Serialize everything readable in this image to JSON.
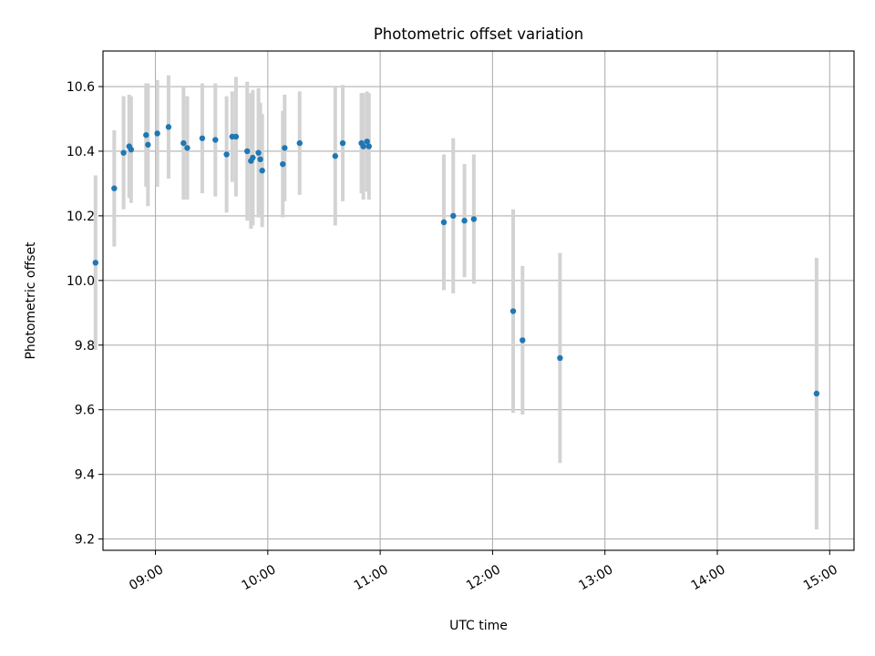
{
  "chart_data": {
    "type": "scatter",
    "title": "Photometric offset variation",
    "xlabel": "UTC time",
    "ylabel": "Photometric offset",
    "xlim": [
      "08:32",
      "15:13"
    ],
    "ylim": [
      9.165,
      10.71
    ],
    "xticks": [
      "09:00",
      "10:00",
      "11:00",
      "12:00",
      "13:00",
      "14:00",
      "15:00"
    ],
    "yticks": [
      "9.2",
      "9.4",
      "9.6",
      "9.8",
      "10.0",
      "10.2",
      "10.4",
      "10.6"
    ],
    "grid": true,
    "colors": {
      "point": "#1f77b4",
      "errorbar": "#d3d3d3"
    },
    "series": [
      {
        "points": [
          {
            "time": "08:28",
            "y": 10.055,
            "yerr": 0.27
          },
          {
            "time": "08:38",
            "y": 10.285,
            "yerr": 0.18
          },
          {
            "time": "08:43",
            "y": 10.395,
            "yerr": 0.175
          },
          {
            "time": "08:46",
            "y": 10.415,
            "yerr": 0.16
          },
          {
            "time": "08:47",
            "y": 10.405,
            "yerr": 0.165
          },
          {
            "time": "08:55",
            "y": 10.45,
            "yerr": 0.16
          },
          {
            "time": "08:56",
            "y": 10.42,
            "yerr": 0.19
          },
          {
            "time": "09:01",
            "y": 10.455,
            "yerr": 0.165
          },
          {
            "time": "09:07",
            "y": 10.475,
            "yerr": 0.16
          },
          {
            "time": "09:15",
            "y": 10.425,
            "yerr": 0.175
          },
          {
            "time": "09:17",
            "y": 10.41,
            "yerr": 0.16
          },
          {
            "time": "09:25",
            "y": 10.44,
            "yerr": 0.17
          },
          {
            "time": "09:32",
            "y": 10.435,
            "yerr": 0.175
          },
          {
            "time": "09:38",
            "y": 10.39,
            "yerr": 0.18
          },
          {
            "time": "09:41",
            "y": 10.445,
            "yerr": 0.14
          },
          {
            "time": "09:43",
            "y": 10.445,
            "yerr": 0.185
          },
          {
            "time": "09:49",
            "y": 10.4,
            "yerr": 0.215
          },
          {
            "time": "09:51",
            "y": 10.37,
            "yerr": 0.21
          },
          {
            "time": "09:52",
            "y": 10.38,
            "yerr": 0.21
          },
          {
            "time": "09:55",
            "y": 10.395,
            "yerr": 0.2
          },
          {
            "time": "09:56",
            "y": 10.375,
            "yerr": 0.175
          },
          {
            "time": "09:57",
            "y": 10.34,
            "yerr": 0.175
          },
          {
            "time": "10:08",
            "y": 10.36,
            "yerr": 0.165
          },
          {
            "time": "10:09",
            "y": 10.41,
            "yerr": 0.165
          },
          {
            "time": "10:17",
            "y": 10.425,
            "yerr": 0.16
          },
          {
            "time": "10:36",
            "y": 10.385,
            "yerr": 0.215
          },
          {
            "time": "10:40",
            "y": 10.425,
            "yerr": 0.18
          },
          {
            "time": "10:50",
            "y": 10.425,
            "yerr": 0.155
          },
          {
            "time": "10:51",
            "y": 10.415,
            "yerr": 0.165
          },
          {
            "time": "10:53",
            "y": 10.43,
            "yerr": 0.155
          },
          {
            "time": "10:54",
            "y": 10.415,
            "yerr": 0.165
          },
          {
            "time": "11:34",
            "y": 10.18,
            "yerr": 0.21
          },
          {
            "time": "11:39",
            "y": 10.2,
            "yerr": 0.24
          },
          {
            "time": "11:45",
            "y": 10.185,
            "yerr": 0.175
          },
          {
            "time": "11:50",
            "y": 10.19,
            "yerr": 0.2
          },
          {
            "time": "12:11",
            "y": 9.905,
            "yerr": 0.315
          },
          {
            "time": "12:16",
            "y": 9.815,
            "yerr": 0.23
          },
          {
            "time": "12:36",
            "y": 9.76,
            "yerr": 0.325
          },
          {
            "time": "14:53",
            "y": 9.65,
            "yerr": 0.42
          }
        ]
      }
    ]
  }
}
